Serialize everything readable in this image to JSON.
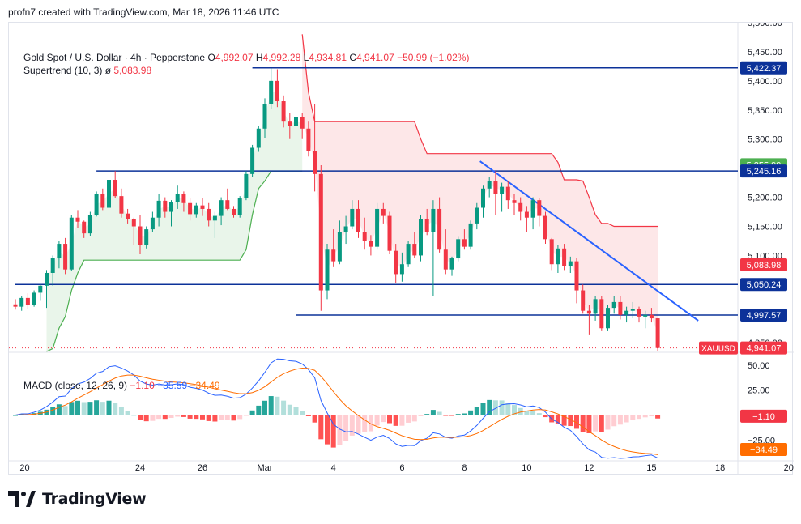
{
  "attribution": "profn7 created with TradingView.com, Mar 18, 2026 11:46 UTC",
  "brand": "TradingView",
  "legend": {
    "symbol": "Gold Spot / U.S. Dollar · 4h · Pepperstone",
    "o_label": "O",
    "o": "4,992.07",
    "h_label": "H",
    "h": "4,992.28",
    "l_label": "L",
    "l": "4,934.81",
    "c_label": "C",
    "c": "4,941.07",
    "change": "−50.99 (−1.02%)",
    "supertrend_label": "Supertrend (10, 3)",
    "supertrend_symbol": "ø",
    "supertrend_value": "5,083.98"
  },
  "macd_legend": {
    "label": "MACD (close, 12, 26, 9)",
    "hist": "−1.10",
    "macd": "−35.59",
    "signal": "−34.49"
  },
  "colors": {
    "up": "#089981",
    "down": "#f23645",
    "level_line": "#0c3299",
    "trendline": "#2962ff",
    "supertrend_up": "#4caf50",
    "supertrend_down": "#f23645",
    "macd": "#2962ff",
    "signal": "#ff6d00"
  },
  "chart_data": {
    "type": "candlestick",
    "instrument": "XAUUSD",
    "price_axis": {
      "ylim": [
        4935,
        5500
      ],
      "ticks": [
        5500,
        5450,
        5400,
        5350,
        5300,
        5250,
        5200,
        5150,
        5100,
        5050,
        5000,
        4950
      ],
      "tick_labels": [
        "5,500.00",
        "5,450.00",
        "5,400.00",
        "5,350.00",
        "5,300.00",
        "5,250.00",
        "5,200.00",
        "5,150.00",
        "5,100.00",
        "5,050.00",
        "5,000.00",
        "4,950.00"
      ]
    },
    "x_axis": {
      "labels": [
        "20",
        "24",
        "26",
        "Mar",
        "4",
        "6",
        "8",
        "10",
        "12",
        "15",
        "18",
        "20"
      ],
      "label_bar_index": [
        1.5,
        20,
        30,
        40,
        51,
        62,
        72,
        82,
        92,
        102,
        113,
        124
      ]
    },
    "candles": [
      [
        5016,
        5025,
        5007,
        5012
      ],
      [
        5012,
        5030,
        5005,
        5027
      ],
      [
        5027,
        5035,
        5008,
        5015
      ],
      [
        5015,
        5040,
        5012,
        5036
      ],
      [
        5036,
        5050,
        5022,
        5048
      ],
      [
        5048,
        5075,
        5010,
        5070
      ],
      [
        5070,
        5100,
        5048,
        5095
      ],
      [
        5095,
        5125,
        5078,
        5120
      ],
      [
        5120,
        5130,
        5068,
        5076
      ],
      [
        5076,
        5170,
        5073,
        5165
      ],
      [
        5165,
        5178,
        5148,
        5158
      ],
      [
        5158,
        5160,
        5130,
        5138
      ],
      [
        5138,
        5175,
        5134,
        5170
      ],
      [
        5170,
        5210,
        5167,
        5205
      ],
      [
        5205,
        5215,
        5178,
        5182
      ],
      [
        5182,
        5235,
        5175,
        5230
      ],
      [
        5230,
        5245,
        5198,
        5202
      ],
      [
        5202,
        5215,
        5165,
        5172
      ],
      [
        5172,
        5180,
        5155,
        5162
      ],
      [
        5162,
        5165,
        5118,
        5150
      ],
      [
        5150,
        5170,
        5102,
        5118
      ],
      [
        5118,
        5150,
        5112,
        5145
      ],
      [
        5145,
        5175,
        5140,
        5165
      ],
      [
        5165,
        5205,
        5150,
        5194
      ],
      [
        5194,
        5200,
        5165,
        5175
      ],
      [
        5175,
        5195,
        5150,
        5192
      ],
      [
        5192,
        5220,
        5180,
        5205
      ],
      [
        5205,
        5210,
        5175,
        5190
      ],
      [
        5190,
        5198,
        5160,
        5171
      ],
      [
        5171,
        5190,
        5165,
        5186
      ],
      [
        5186,
        5198,
        5168,
        5180
      ],
      [
        5180,
        5190,
        5150,
        5160
      ],
      [
        5160,
        5175,
        5130,
        5168
      ],
      [
        5168,
        5200,
        5152,
        5195
      ],
      [
        5195,
        5215,
        5178,
        5180
      ],
      [
        5180,
        5185,
        5165,
        5170
      ],
      [
        5170,
        5202,
        5165,
        5198
      ],
      [
        5198,
        5245,
        5195,
        5240
      ],
      [
        5240,
        5290,
        5235,
        5285
      ],
      [
        5285,
        5322,
        5278,
        5318
      ],
      [
        5318,
        5370,
        5302,
        5360
      ],
      [
        5360,
        5422,
        5352,
        5400
      ],
      [
        5400,
        5420,
        5355,
        5365
      ],
      [
        5365,
        5375,
        5320,
        5330
      ],
      [
        5330,
        5345,
        5300,
        5322
      ],
      [
        5322,
        5345,
        5285,
        5338
      ],
      [
        5338,
        5345,
        5300,
        5318
      ],
      [
        5318,
        5330,
        5270,
        5280
      ],
      [
        5280,
        5360,
        5210,
        5240
      ],
      [
        5240,
        5255,
        5005,
        5040
      ],
      [
        5040,
        5120,
        5025,
        5110
      ],
      [
        5110,
        5145,
        5080,
        5090
      ],
      [
        5090,
        5160,
        5085,
        5140
      ],
      [
        5140,
        5168,
        5120,
        5150
      ],
      [
        5150,
        5195,
        5145,
        5180
      ],
      [
        5180,
        5195,
        5130,
        5140
      ],
      [
        5140,
        5165,
        5110,
        5125
      ],
      [
        5125,
        5135,
        5100,
        5115
      ],
      [
        5115,
        5190,
        5110,
        5180
      ],
      [
        5180,
        5190,
        5155,
        5168
      ],
      [
        5168,
        5175,
        5102,
        5108
      ],
      [
        5108,
        5120,
        5052,
        5068
      ],
      [
        5068,
        5105,
        5055,
        5085
      ],
      [
        5085,
        5125,
        5080,
        5120
      ],
      [
        5120,
        5140,
        5095,
        5100
      ],
      [
        5100,
        5170,
        5090,
        5162
      ],
      [
        5162,
        5180,
        5135,
        5140
      ],
      [
        5140,
        5195,
        5030,
        5180
      ],
      [
        5180,
        5200,
        5105,
        5110
      ],
      [
        5110,
        5145,
        5068,
        5076
      ],
      [
        5076,
        5098,
        5065,
        5095
      ],
      [
        5095,
        5132,
        5090,
        5128
      ],
      [
        5128,
        5145,
        5110,
        5115
      ],
      [
        5115,
        5160,
        5110,
        5155
      ],
      [
        5155,
        5190,
        5145,
        5182
      ],
      [
        5182,
        5220,
        5165,
        5215
      ],
      [
        5215,
        5235,
        5200,
        5228
      ],
      [
        5228,
        5245,
        5170,
        5205
      ],
      [
        5205,
        5225,
        5175,
        5218
      ],
      [
        5218,
        5228,
        5180,
        5195
      ],
      [
        5195,
        5205,
        5170,
        5190
      ],
      [
        5190,
        5200,
        5160,
        5175
      ],
      [
        5175,
        5185,
        5140,
        5165
      ],
      [
        5165,
        5200,
        5145,
        5195
      ],
      [
        5195,
        5198,
        5150,
        5168
      ],
      [
        5168,
        5175,
        5120,
        5128
      ],
      [
        5128,
        5130,
        5075,
        5085
      ],
      [
        5085,
        5118,
        5070,
        5112
      ],
      [
        5112,
        5120,
        5075,
        5082
      ],
      [
        5082,
        5098,
        5070,
        5090
      ],
      [
        5090,
        5096,
        5018,
        5040
      ],
      [
        5040,
        5050,
        5000,
        5005
      ],
      [
        5005,
        5015,
        4963,
        5000
      ],
      [
        5000,
        5030,
        4988,
        5025
      ],
      [
        5025,
        5030,
        4970,
        4975
      ],
      [
        4975,
        5015,
        4970,
        5010
      ],
      [
        5010,
        5030,
        5000,
        5020
      ],
      [
        5020,
        5030,
        4990,
        4998
      ],
      [
        4998,
        5012,
        4985,
        5005
      ],
      [
        5005,
        5020,
        4992,
        5008
      ],
      [
        5008,
        5012,
        4985,
        4995
      ],
      [
        4995,
        5005,
        4975,
        4998
      ],
      [
        4998,
        5010,
        4985,
        4992
      ],
      [
        4992,
        4992,
        4935,
        4941
      ]
    ],
    "supertrend_up_segment_values": "see markup script",
    "levels": [
      5422.37,
      5245.16,
      5050.24,
      4997.57
    ],
    "price_labels": [
      {
        "text": "5,422.37",
        "kind": "level"
      },
      {
        "text": "5,255.99",
        "kind": "green"
      },
      {
        "text": "5,245.16",
        "kind": "level"
      },
      {
        "text": "5,083.98",
        "kind": "red"
      },
      {
        "text": "5,050.24",
        "kind": "level"
      },
      {
        "text": "4,997.57",
        "kind": "level"
      },
      {
        "text": "4,941.07",
        "kind": "red"
      }
    ],
    "symbol_tag": "XAUUSD",
    "macd_axis": {
      "ylim": [
        -45,
        62
      ],
      "ticks": [
        50,
        25,
        -25
      ],
      "tick_labels": [
        "50.00",
        "25.00",
        "−25.00"
      ]
    },
    "macd_labels": [
      {
        "text": "−1.10",
        "kind": "red"
      },
      {
        "text": "−34.49",
        "kind": "orange"
      }
    ]
  }
}
